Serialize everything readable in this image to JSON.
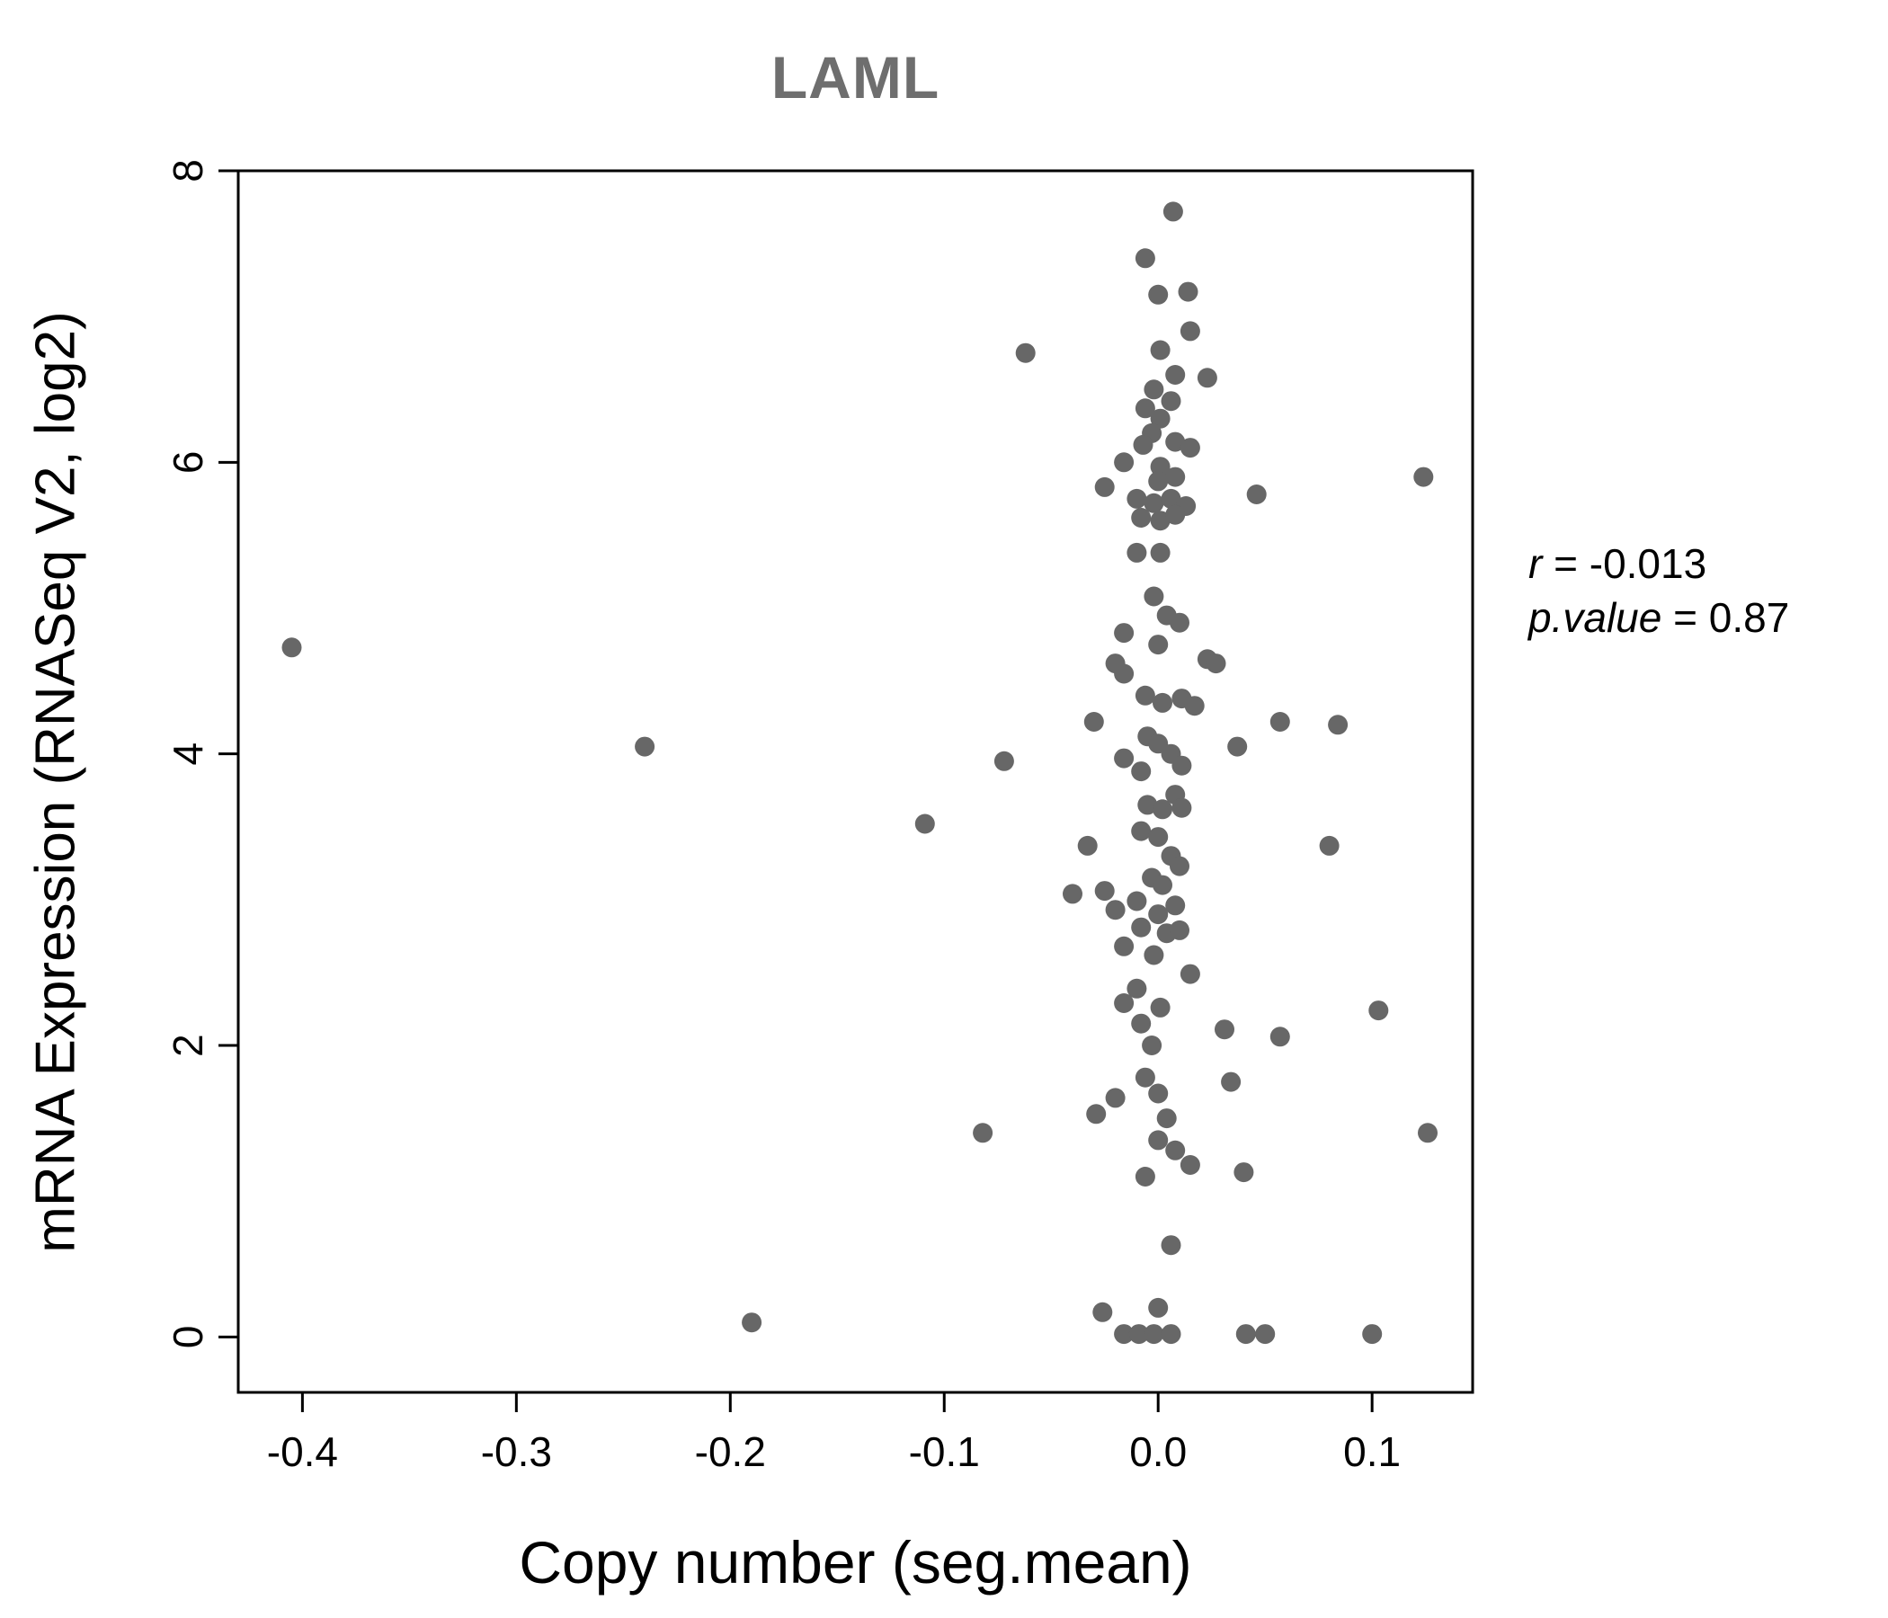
{
  "chart_data": {
    "type": "scatter",
    "title": "LAML",
    "xlabel": "Copy number (seg.mean)",
    "ylabel": "mRNA Expression (RNASeq V2, log2)",
    "xlim": [
      -0.43,
      0.147
    ],
    "ylim": [
      -0.38,
      8.0
    ],
    "xticks": [
      -0.4,
      -0.3,
      -0.2,
      -0.1,
      0.0,
      0.1
    ],
    "xtick_labels": [
      "-0.4",
      "-0.3",
      "-0.2",
      "-0.1",
      "0.0",
      "0.1"
    ],
    "yticks": [
      0,
      2,
      4,
      6,
      8
    ],
    "ytick_labels": [
      "0",
      "2",
      "4",
      "6",
      "8"
    ],
    "grid": false,
    "legend": "none",
    "point_color": "#676767",
    "title_color": "#6e6e6e",
    "annotation": {
      "lines": [
        {
          "var": "r",
          "rest": " = -0.013"
        },
        {
          "var": "p.value",
          "rest": " = 0.87"
        }
      ]
    },
    "points": [
      [
        0.007,
        7.72
      ],
      [
        -0.006,
        7.4
      ],
      [
        0.0,
        7.15
      ],
      [
        0.014,
        7.17
      ],
      [
        0.015,
        6.9
      ],
      [
        0.001,
        6.77
      ],
      [
        -0.062,
        6.75
      ],
      [
        0.008,
        6.6
      ],
      [
        0.023,
        6.58
      ],
      [
        -0.002,
        6.5
      ],
      [
        0.006,
        6.42
      ],
      [
        -0.006,
        6.37
      ],
      [
        0.001,
        6.3
      ],
      [
        -0.003,
        6.2
      ],
      [
        -0.007,
        6.12
      ],
      [
        0.008,
        6.14
      ],
      [
        -0.016,
        6.0
      ],
      [
        0.001,
        5.97
      ],
      [
        0.015,
        6.1
      ],
      [
        0.124,
        5.9
      ],
      [
        -0.025,
        5.83
      ],
      [
        0.0,
        5.87
      ],
      [
        0.008,
        5.9
      ],
      [
        0.046,
        5.78
      ],
      [
        -0.01,
        5.75
      ],
      [
        -0.002,
        5.72
      ],
      [
        0.006,
        5.75
      ],
      [
        0.013,
        5.7
      ],
      [
        -0.008,
        5.62
      ],
      [
        0.001,
        5.6
      ],
      [
        0.008,
        5.64
      ],
      [
        -0.01,
        5.38
      ],
      [
        0.001,
        5.38
      ],
      [
        -0.002,
        5.08
      ],
      [
        0.004,
        4.95
      ],
      [
        0.01,
        4.9
      ],
      [
        -0.016,
        4.83
      ],
      [
        0.0,
        4.75
      ],
      [
        -0.405,
        4.73
      ],
      [
        -0.02,
        4.62
      ],
      [
        -0.016,
        4.55
      ],
      [
        0.023,
        4.65
      ],
      [
        0.027,
        4.62
      ],
      [
        -0.006,
        4.4
      ],
      [
        0.002,
        4.35
      ],
      [
        0.011,
        4.38
      ],
      [
        0.017,
        4.33
      ],
      [
        -0.03,
        4.22
      ],
      [
        0.057,
        4.22
      ],
      [
        0.084,
        4.2
      ],
      [
        -0.005,
        4.12
      ],
      [
        -0.24,
        4.05
      ],
      [
        0.0,
        4.07
      ],
      [
        0.006,
        4.0
      ],
      [
        -0.072,
        3.95
      ],
      [
        -0.016,
        3.97
      ],
      [
        -0.008,
        3.88
      ],
      [
        0.011,
        3.92
      ],
      [
        0.037,
        4.05
      ],
      [
        0.008,
        3.72
      ],
      [
        -0.005,
        3.65
      ],
      [
        0.002,
        3.62
      ],
      [
        0.011,
        3.63
      ],
      [
        -0.109,
        3.52
      ],
      [
        -0.008,
        3.47
      ],
      [
        0.0,
        3.43
      ],
      [
        -0.033,
        3.37
      ],
      [
        0.08,
        3.37
      ],
      [
        0.006,
        3.3
      ],
      [
        0.01,
        3.23
      ],
      [
        -0.003,
        3.15
      ],
      [
        0.002,
        3.1
      ],
      [
        -0.04,
        3.04
      ],
      [
        -0.025,
        3.06
      ],
      [
        -0.01,
        2.99
      ],
      [
        -0.02,
        2.93
      ],
      [
        0.0,
        2.9
      ],
      [
        0.008,
        2.96
      ],
      [
        -0.008,
        2.81
      ],
      [
        0.004,
        2.77
      ],
      [
        -0.016,
        2.68
      ],
      [
        -0.002,
        2.62
      ],
      [
        0.01,
        2.79
      ],
      [
        0.015,
        2.49
      ],
      [
        -0.01,
        2.39
      ],
      [
        -0.016,
        2.29
      ],
      [
        0.001,
        2.26
      ],
      [
        0.103,
        2.24
      ],
      [
        -0.008,
        2.15
      ],
      [
        0.031,
        2.11
      ],
      [
        -0.003,
        2.0
      ],
      [
        0.057,
        2.06
      ],
      [
        -0.006,
        1.78
      ],
      [
        0.034,
        1.75
      ],
      [
        -0.02,
        1.64
      ],
      [
        0.0,
        1.67
      ],
      [
        -0.029,
        1.53
      ],
      [
        0.004,
        1.5
      ],
      [
        -0.082,
        1.4
      ],
      [
        0.126,
        1.4
      ],
      [
        0.0,
        1.35
      ],
      [
        0.008,
        1.28
      ],
      [
        0.015,
        1.18
      ],
      [
        -0.006,
        1.1
      ],
      [
        0.04,
        1.13
      ],
      [
        0.006,
        0.63
      ],
      [
        -0.026,
        0.17
      ],
      [
        0.0,
        0.2
      ],
      [
        -0.19,
        0.1
      ],
      [
        -0.016,
        0.02
      ],
      [
        -0.009,
        0.02
      ],
      [
        -0.002,
        0.02
      ],
      [
        0.006,
        0.02
      ],
      [
        0.041,
        0.02
      ],
      [
        0.05,
        0.02
      ],
      [
        0.1,
        0.02
      ]
    ]
  }
}
